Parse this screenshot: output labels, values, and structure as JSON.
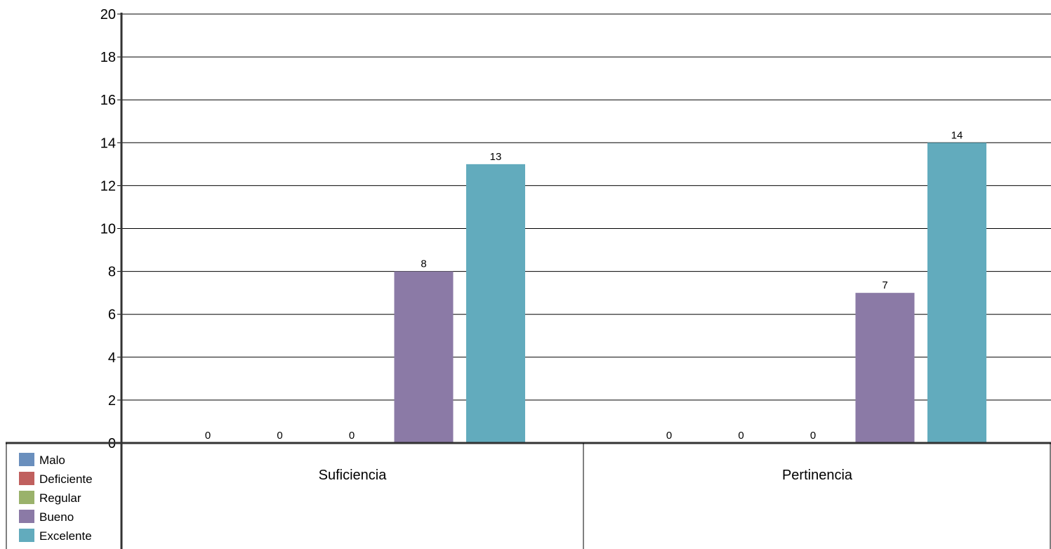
{
  "chart_data": {
    "type": "bar",
    "title": "",
    "xlabel": "",
    "ylabel": "",
    "ylim": [
      0,
      20
    ],
    "yticks": [
      0,
      2,
      4,
      6,
      8,
      10,
      12,
      14,
      16,
      18,
      20
    ],
    "grid": true,
    "legend_position": "bottom-left",
    "categories": [
      "Suficiencia",
      "Pertinencia"
    ],
    "series": [
      {
        "name": "Malo",
        "color": "#6a8fbd",
        "values": [
          0,
          0
        ]
      },
      {
        "name": "Deficiente",
        "color": "#c0605e",
        "values": [
          0,
          0
        ]
      },
      {
        "name": "Regular",
        "color": "#9ab26b",
        "values": [
          0,
          0
        ]
      },
      {
        "name": "Bueno",
        "color": "#8b7aa6",
        "values": [
          8,
          7
        ]
      },
      {
        "name": "Excelente",
        "color": "#62abbd",
        "values": [
          13,
          14
        ]
      }
    ],
    "data_labels": true
  }
}
